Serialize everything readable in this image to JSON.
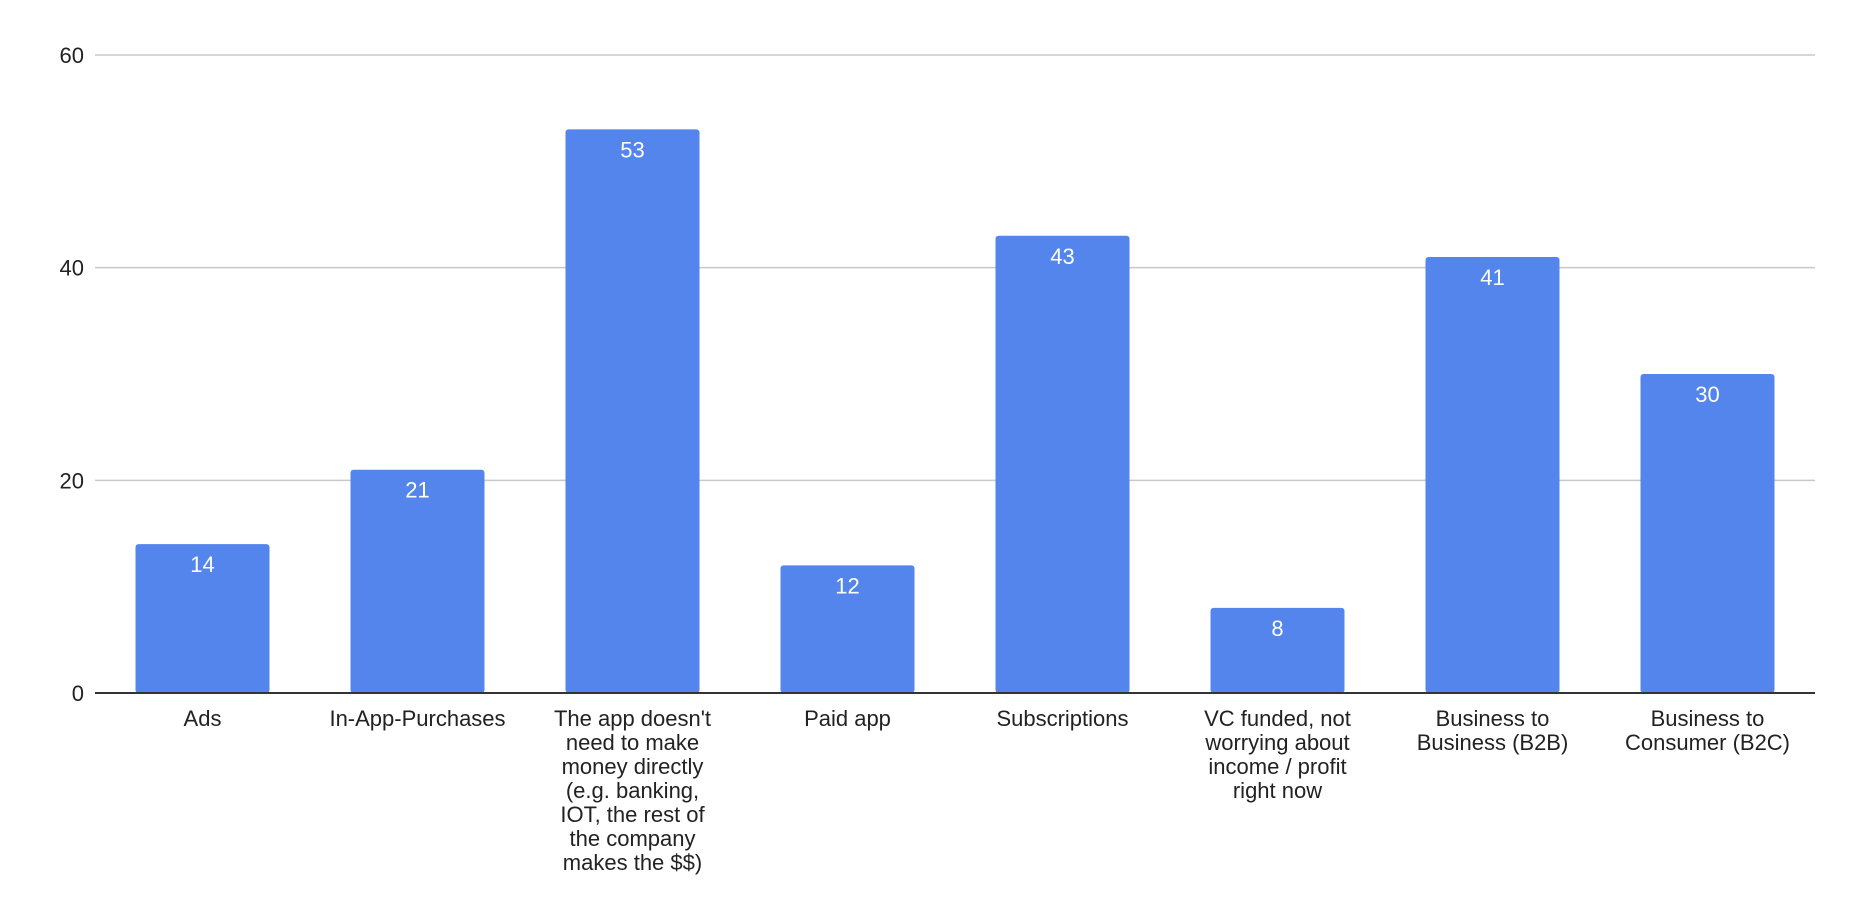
{
  "chart_data": {
    "type": "bar",
    "categories": [
      [
        "Ads"
      ],
      [
        "In-App-Purchases"
      ],
      [
        "The app doesn't",
        "need to make",
        "money directly",
        "(e.g. banking,",
        "IOT, the rest of",
        "the company",
        "makes the $$)"
      ],
      [
        "Paid app"
      ],
      [
        "Subscriptions"
      ],
      [
        "VC funded, not",
        "worrying about",
        "income / profit",
        "right now"
      ],
      [
        "Business to",
        "Business (B2B)"
      ],
      [
        "Business to",
        "Consumer (B2C)"
      ]
    ],
    "values": [
      14,
      21,
      53,
      12,
      43,
      8,
      41,
      30
    ],
    "ylim": [
      0,
      60
    ],
    "yticks": [
      0,
      20,
      40,
      60
    ],
    "grid": true,
    "colors": {
      "bar": "#5385ec",
      "grid": "#c8c8c8",
      "axis": "#333333",
      "data_label": "#ffffff",
      "text": "#222222"
    }
  }
}
